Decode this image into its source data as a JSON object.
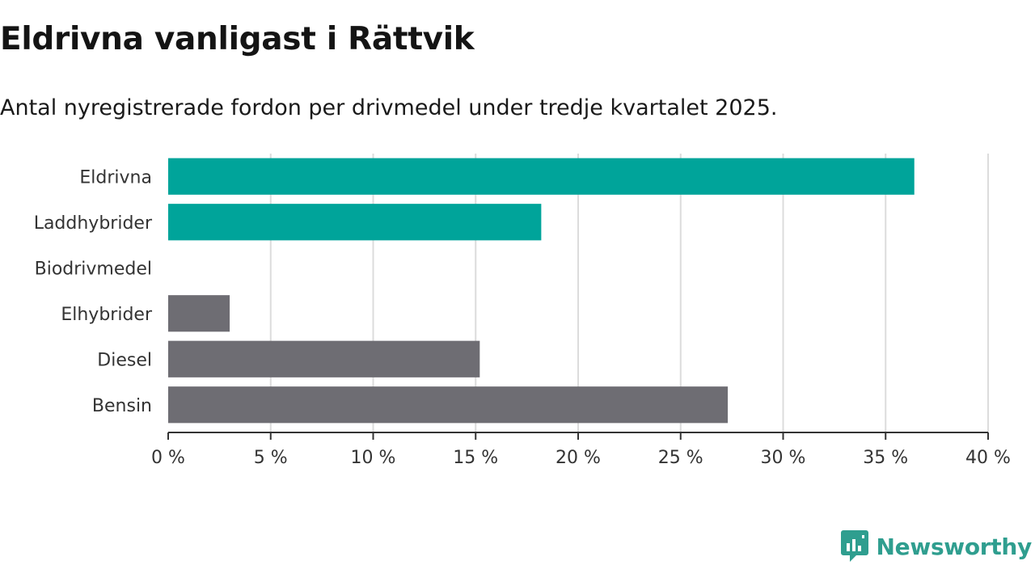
{
  "chart_data": {
    "type": "bar",
    "orientation": "horizontal",
    "title": "Eldrivna vanligast i Rättvik",
    "subtitle": "Antal nyregistrerade fordon per drivmedel under tredje kvartalet 2025.",
    "categories": [
      "Eldrivna",
      "Laddhybrider",
      "Biodrivmedel",
      "Elhybrider",
      "Diesel",
      "Bensin"
    ],
    "values": [
      36.4,
      18.2,
      0,
      3.0,
      15.2,
      27.3
    ],
    "bar_colors": [
      "#00a49a",
      "#00a49a",
      "#00a49a",
      "#6e6d73",
      "#6e6d73",
      "#6e6d73"
    ],
    "xlim": [
      0,
      40
    ],
    "xticks": [
      0,
      5,
      10,
      15,
      20,
      25,
      30,
      35,
      40
    ],
    "xtick_labels": [
      "0 %",
      "5 %",
      "10 %",
      "15 %",
      "20 %",
      "25 %",
      "30 %",
      "35 %",
      "40 %"
    ],
    "xlabel": "",
    "ylabel": "",
    "grid": true
  },
  "brand": {
    "name": "Newsworthy",
    "color": "#2f9e8f",
    "icon": "newsworthy-logo-icon"
  }
}
